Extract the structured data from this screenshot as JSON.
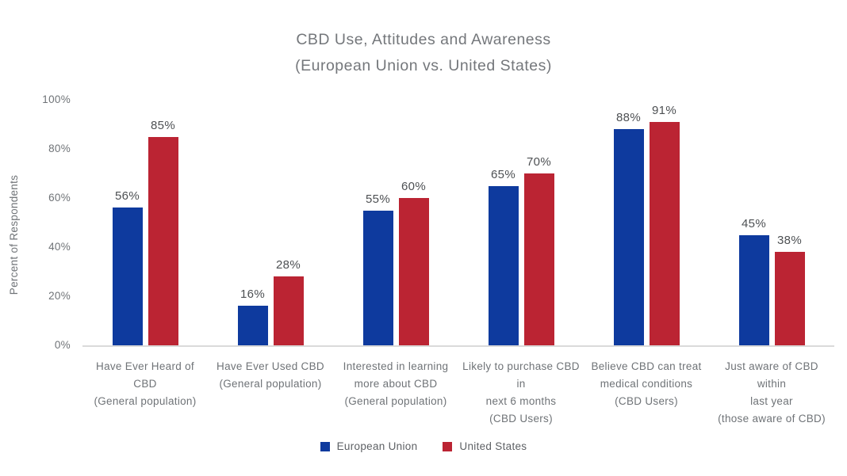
{
  "title": {
    "line1": "CBD Use, Attitudes and Awareness",
    "line2": "(European Union vs. United States)"
  },
  "axes": {
    "y_label": "Percent of Respondents",
    "y_ticks": [
      {
        "label": "0%",
        "value": 0
      },
      {
        "label": "20%",
        "value": 20
      },
      {
        "label": "40%",
        "value": 40
      },
      {
        "label": "60%",
        "value": 60
      },
      {
        "label": "80%",
        "value": 80
      },
      {
        "label": "100%",
        "value": 100
      }
    ]
  },
  "colors": {
    "eu_blue": "#0e3a9e",
    "us_red": "#bb2433",
    "baseline_gray": "#dadada",
    "text_gray": "#6f7377",
    "value_gray": "#4d5053"
  },
  "legend": [
    {
      "label": "European Union",
      "color": "#0e3a9e"
    },
    {
      "label": "United States",
      "color": "#bb2433"
    }
  ],
  "chart_data": {
    "type": "bar",
    "title": "CBD Use, Attitudes and Awareness (European Union vs. United States)",
    "xlabel": "",
    "ylabel": "Percent of Respondents",
    "ylim": [
      0,
      100
    ],
    "grid": false,
    "legend_position": "bottom",
    "value_label_suffix": "%",
    "categories": [
      "Have Ever Heard of CBD (General population)",
      "Have Ever Used CBD (General population)",
      "Interested in learning more about CBD (General population)",
      "Likely to purchase CBD in next 6 months (CBD Users)",
      "Believe CBD can treat medical conditions (CBD Users)",
      "Just aware of CBD within last year (those aware of CBD)"
    ],
    "category_lines": [
      [
        "Have Ever Heard of CBD",
        "(General population)"
      ],
      [
        "Have Ever Used CBD",
        "(General population)"
      ],
      [
        "Interested in learning",
        "more about CBD",
        "(General population)"
      ],
      [
        "Likely to purchase CBD in",
        "next 6 months",
        "(CBD Users)"
      ],
      [
        "Believe CBD can treat",
        "medical conditions",
        "(CBD Users)"
      ],
      [
        "Just aware of CBD within",
        "last year",
        "(those aware of CBD)"
      ]
    ],
    "series": [
      {
        "name": "European Union",
        "color": "#0e3a9e",
        "values": [
          56,
          16,
          55,
          65,
          88,
          45
        ]
      },
      {
        "name": "United States",
        "color": "#bb2433",
        "values": [
          85,
          28,
          60,
          70,
          91,
          38
        ]
      }
    ]
  }
}
